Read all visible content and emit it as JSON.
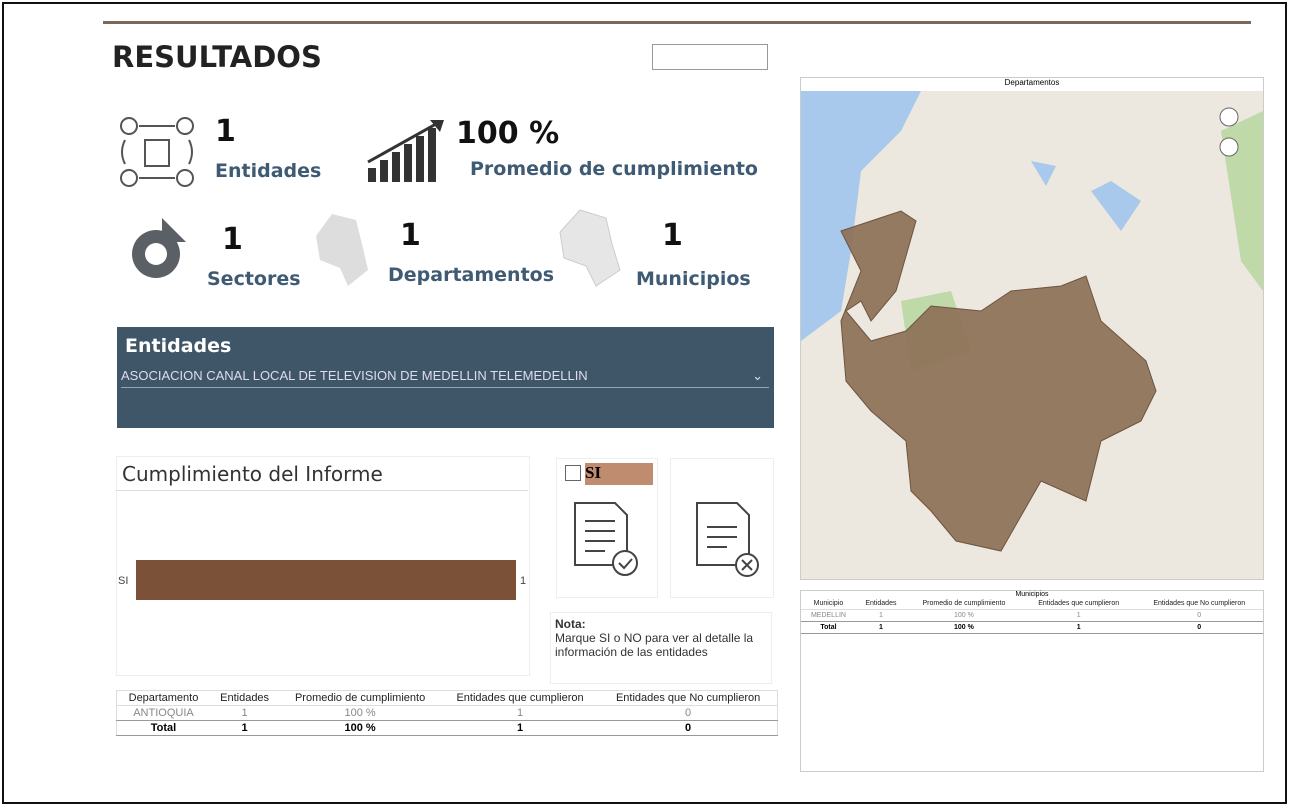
{
  "header": {
    "title": "RESULTADOS"
  },
  "kpis": [
    {
      "value": "1",
      "label": "Entidades"
    },
    {
      "value": "100 %",
      "label": "Promedio de cumplimiento"
    },
    {
      "value": "1",
      "label": "Sectores"
    },
    {
      "value": "1",
      "label": "Departamentos"
    },
    {
      "value": "1",
      "label": "Municipios"
    }
  ],
  "slicer": {
    "title": "Entidades",
    "selected": "ASOCIACION CANAL LOCAL DE TELEVISION DE MEDELLIN  TELEMEDELLIN"
  },
  "chart": {
    "type": "bar",
    "title": "Cumplimiento del Informe",
    "categories": [
      "SI"
    ],
    "values": [
      1
    ],
    "color": "#7b5138"
  },
  "filter": {
    "option": "SI"
  },
  "note": {
    "title": "Nota:",
    "text": "Marque SI o NO para ver al detalle la información de las entidades"
  },
  "dept_table": {
    "columns": [
      "Departamento",
      "Entidades",
      "Promedio de cumplimiento",
      "Entidades que cumplieron",
      "Entidades que No cumplieron"
    ],
    "rows": [
      [
        "ANTIOQUIA",
        "1",
        "100 %",
        "1",
        "0"
      ]
    ],
    "total": [
      "Total",
      "1",
      "100 %",
      "1",
      "0"
    ]
  },
  "map": {
    "title": "Departamentos"
  },
  "muni_table": {
    "title": "Municipios",
    "columns": [
      "Municipio",
      "Entidades",
      "Promedio de cumplimiento",
      "Entidades que cumplieron",
      "Entidades que No cumplieron"
    ],
    "rows": [
      [
        "MEDELLIN",
        "1",
        "100 %",
        "1",
        "0"
      ]
    ],
    "total": [
      "Total",
      "1",
      "100 %",
      "1",
      "0"
    ]
  }
}
